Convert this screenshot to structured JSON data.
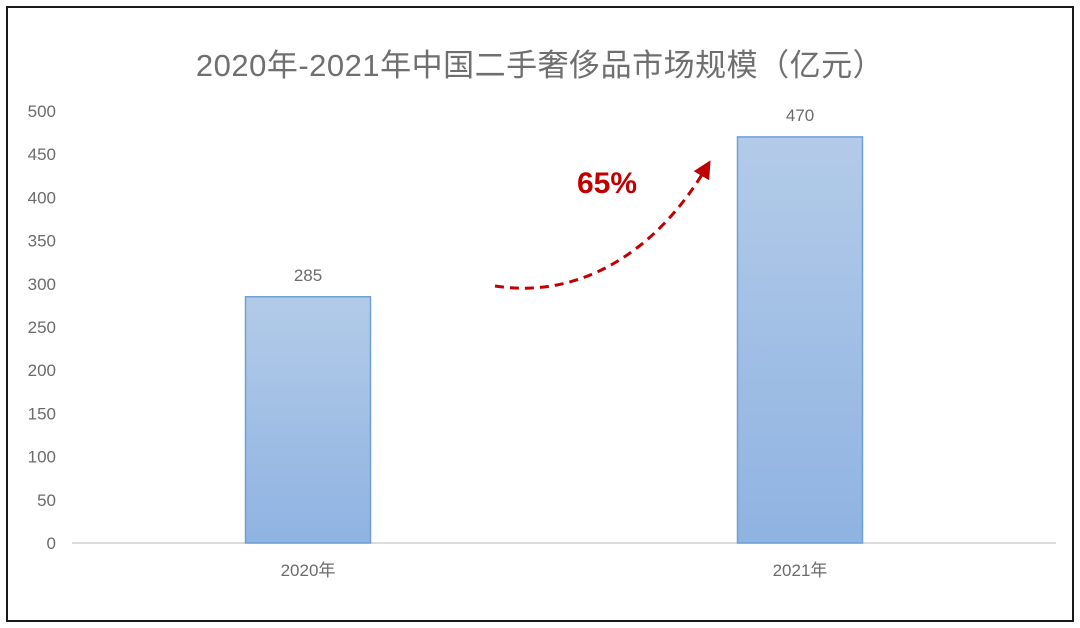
{
  "chart_data": {
    "type": "bar",
    "title": "2020年-2021年中国二手奢侈品市场规模（亿元）",
    "categories": [
      "2020年",
      "2021年"
    ],
    "values": [
      285,
      470
    ],
    "data_labels": [
      "285",
      "470"
    ],
    "ylim": [
      0,
      500
    ],
    "yticks": [
      0,
      50,
      100,
      150,
      200,
      250,
      300,
      350,
      400,
      450,
      500
    ],
    "xlabel": "",
    "ylabel": "",
    "grid": false,
    "legend": "none",
    "annotation": {
      "text": "65%",
      "color": "#c00000",
      "style": "dashed curved arrow"
    },
    "bar_color_top": "#b3cbe8",
    "bar_color_bottom": "#8fb3e2",
    "bar_border": "#6e9fd6",
    "axis_color": "#d0d0d0"
  }
}
